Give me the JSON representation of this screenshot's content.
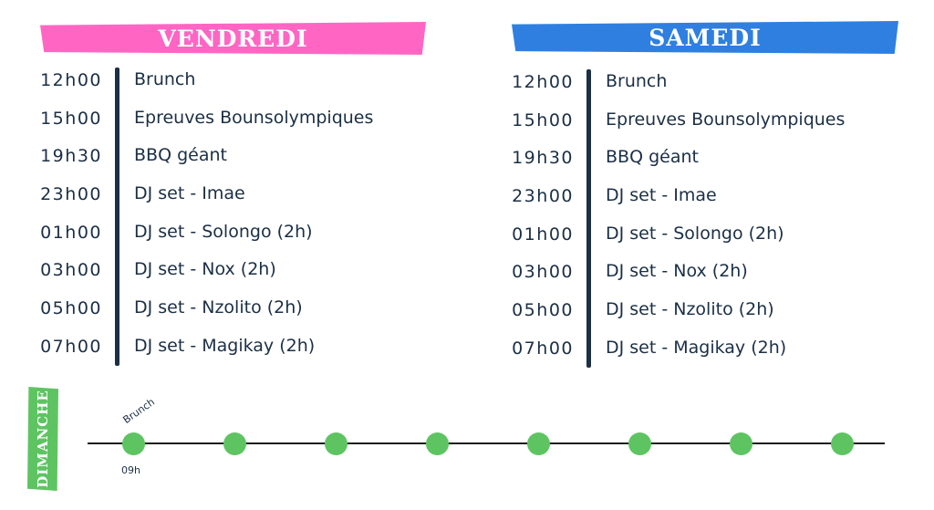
{
  "days": [
    {
      "name": "VENDREDI",
      "color": "#ff66c4",
      "events": [
        {
          "time": "12h00",
          "label": "Brunch"
        },
        {
          "time": "15h00",
          "label": "Epreuves Bounsolympiques"
        },
        {
          "time": "19h30",
          "label": "BBQ géant"
        },
        {
          "time": "23h00",
          "label": "DJ set - Imae"
        },
        {
          "time": "01h00",
          "label": "DJ set - Solongo (2h)"
        },
        {
          "time": "03h00",
          "label": "DJ set - Nox (2h)"
        },
        {
          "time": "05h00",
          "label": "DJ set - Nzolito (2h)"
        },
        {
          "time": "07h00",
          "label": "DJ set - Magikay (2h)"
        }
      ]
    },
    {
      "name": "SAMEDI",
      "color": "#2f7fe0",
      "events": [
        {
          "time": "12h00",
          "label": "Brunch"
        },
        {
          "time": "15h00",
          "label": "Epreuves Bounsolympiques"
        },
        {
          "time": "19h30",
          "label": "BBQ géant"
        },
        {
          "time": "23h00",
          "label": "DJ set - Imae"
        },
        {
          "time": "01h00",
          "label": "DJ set - Solongo (2h)"
        },
        {
          "time": "03h00",
          "label": "DJ set - Nox (2h)"
        },
        {
          "time": "05h00",
          "label": "DJ set - Nzolito (2h)"
        },
        {
          "time": "07h00",
          "label": "DJ set - Magikay (2h)"
        }
      ]
    }
  ],
  "sunday": {
    "name": "DIMANCHE",
    "color": "#5ec462",
    "first_event": {
      "label": "Brunch",
      "time": "09h"
    }
  }
}
